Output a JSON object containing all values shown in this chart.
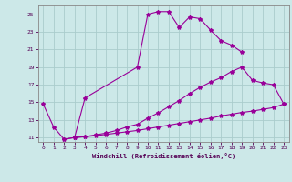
{
  "bg_color": "#cce8e8",
  "line_color": "#990099",
  "grid_color": "#aacccc",
  "yticks": [
    11,
    13,
    15,
    17,
    19,
    21,
    23,
    25
  ],
  "xticks": [
    0,
    1,
    2,
    3,
    4,
    5,
    6,
    7,
    8,
    9,
    10,
    11,
    12,
    13,
    14,
    15,
    16,
    17,
    18,
    19,
    20,
    21,
    22,
    23
  ],
  "xlim": [
    -0.5,
    23.5
  ],
  "ylim": [
    10.5,
    26.0
  ],
  "xlabel": "Windchill (Refroidissement éolien,°C)",
  "curve1_x": [
    0,
    1,
    2,
    3,
    4,
    9,
    10,
    11,
    12,
    13,
    14,
    15,
    16,
    17,
    18,
    19
  ],
  "curve1_y": [
    14.8,
    12.2,
    10.8,
    11.0,
    15.5,
    19.0,
    25.0,
    25.3,
    25.3,
    23.5,
    24.7,
    24.5,
    23.2,
    22.0,
    21.5,
    20.7
  ],
  "curve2_x": [
    3,
    4,
    5,
    6,
    7,
    8,
    9,
    10,
    11,
    12,
    13,
    14,
    15,
    16,
    17,
    18,
    19,
    20,
    21,
    22,
    23
  ],
  "curve2_y": [
    11.0,
    11.1,
    11.3,
    11.5,
    11.8,
    12.2,
    12.5,
    13.2,
    13.8,
    14.5,
    15.2,
    16.0,
    16.7,
    17.3,
    17.8,
    18.5,
    19.0,
    17.5,
    17.2,
    17.0,
    14.8
  ],
  "curve3_x": [
    2,
    3,
    4,
    5,
    6,
    7,
    8,
    9,
    10,
    11,
    12,
    13,
    14,
    15,
    16,
    17,
    18,
    19,
    20,
    21,
    22,
    23
  ],
  "curve3_y": [
    10.8,
    11.0,
    11.1,
    11.2,
    11.35,
    11.5,
    11.65,
    11.8,
    12.0,
    12.2,
    12.4,
    12.6,
    12.8,
    13.0,
    13.2,
    13.45,
    13.65,
    13.85,
    14.0,
    14.2,
    14.4,
    14.8
  ]
}
